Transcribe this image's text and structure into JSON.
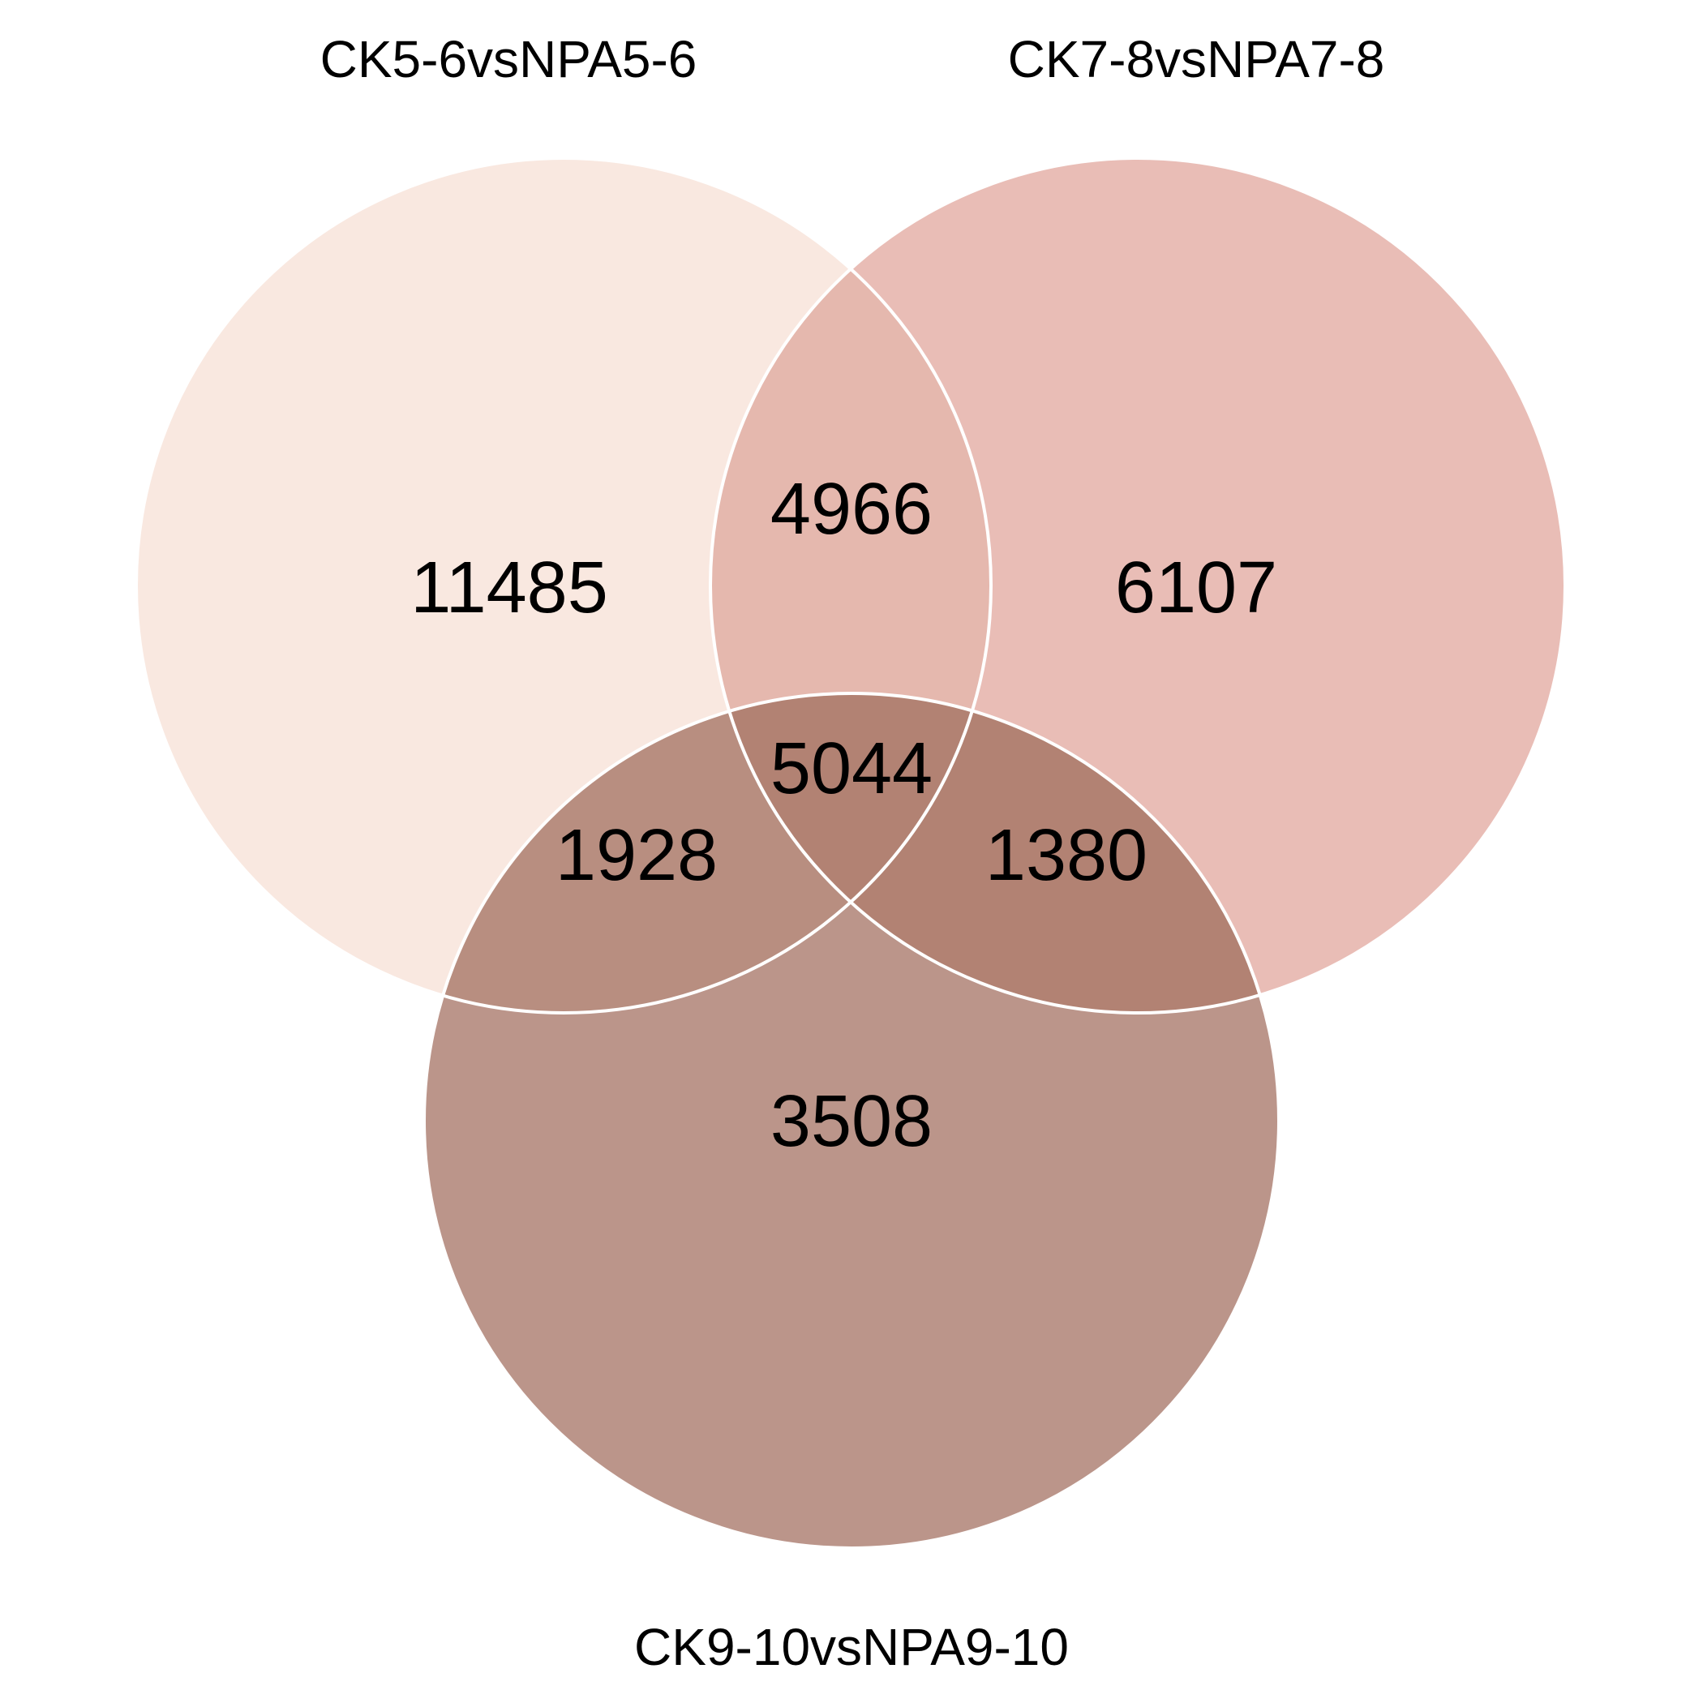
{
  "sets": [
    {
      "id": "A",
      "name": "CK5-6vsNPA5-6"
    },
    {
      "id": "B",
      "name": "CK7-8vsNPA7-8"
    },
    {
      "id": "C",
      "name": "CK9-10vsNPA9-10"
    }
  ],
  "regions": {
    "a_only": {
      "sets": [
        "A"
      ],
      "count": "11485",
      "color": "#f9e8e0"
    },
    "b_only": {
      "sets": [
        "B"
      ],
      "count": "6107",
      "color": "#e9bdb6"
    },
    "c_only": {
      "sets": [
        "C"
      ],
      "count": "3508",
      "color": "#bb958a"
    },
    "ab": {
      "sets": [
        "A",
        "B"
      ],
      "count": "4966",
      "color": "#e5b8ae"
    },
    "ac": {
      "sets": [
        "A",
        "C"
      ],
      "count": "1928",
      "color": "#b88e80"
    },
    "bc": {
      "sets": [
        "B",
        "C"
      ],
      "count": "1380",
      "color": "#b28273"
    },
    "abc": {
      "sets": [
        "A",
        "B",
        "C"
      ],
      "count": "5044",
      "color": "#b28273"
    }
  },
  "outline_color": "#ffffff"
}
